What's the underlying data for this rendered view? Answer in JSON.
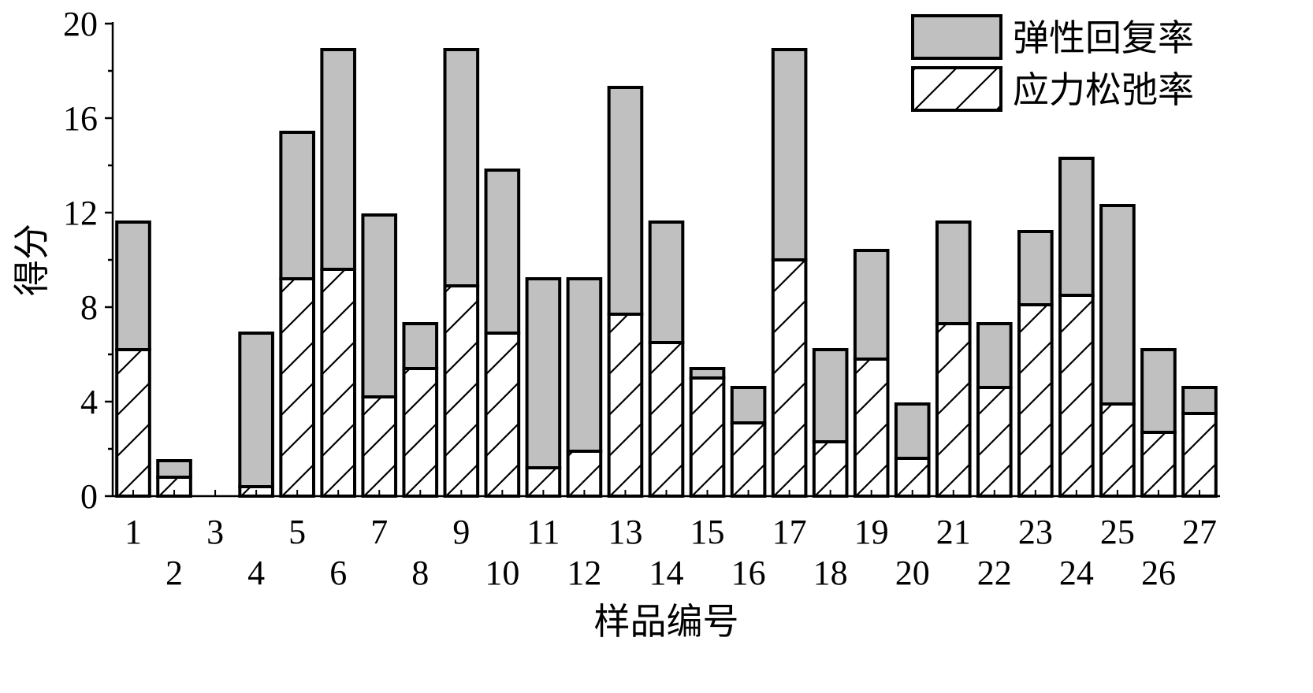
{
  "chart_data": {
    "type": "bar",
    "stacked": true,
    "xlabel": "样品编号",
    "ylabel": "得分",
    "ylim": [
      0,
      20
    ],
    "yticks": [
      0,
      4,
      8,
      12,
      16,
      20
    ],
    "categories": [
      "1",
      "2",
      "3",
      "4",
      "5",
      "6",
      "7",
      "8",
      "9",
      "10",
      "11",
      "12",
      "13",
      "14",
      "15",
      "16",
      "17",
      "18",
      "19",
      "20",
      "21",
      "22",
      "23",
      "24",
      "25",
      "26",
      "27"
    ],
    "series": [
      {
        "name": "应力松弛率",
        "pattern": "hatch",
        "values": [
          6.2,
          0.8,
          0,
          0.4,
          9.2,
          9.6,
          4.2,
          5.4,
          8.9,
          6.9,
          1.2,
          1.9,
          7.7,
          6.5,
          5.0,
          3.1,
          10.0,
          2.3,
          5.8,
          1.6,
          7.3,
          4.6,
          8.1,
          8.5,
          3.9,
          2.7,
          3.5
        ]
      },
      {
        "name": "弹性回复率",
        "color": "#c0c0c0",
        "values": [
          5.4,
          0.7,
          0,
          6.5,
          6.2,
          9.3,
          7.7,
          1.9,
          10.0,
          6.9,
          8.0,
          7.3,
          9.6,
          5.1,
          0.4,
          1.5,
          8.9,
          3.9,
          4.6,
          2.3,
          4.3,
          2.7,
          3.1,
          5.8,
          8.4,
          3.5,
          1.1
        ]
      }
    ],
    "legend": {
      "position": "top-right",
      "entries": [
        "弹性回复率",
        "应力松弛率"
      ]
    },
    "grid": false
  }
}
